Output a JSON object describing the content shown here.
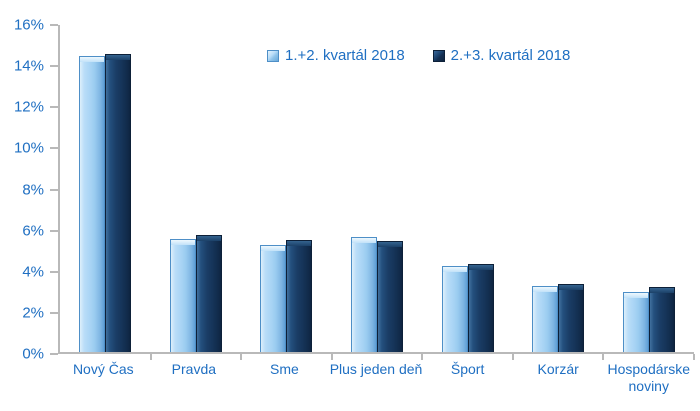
{
  "chart_data": {
    "type": "bar",
    "title": "",
    "xlabel": "",
    "ylabel": "",
    "ylim": [
      0,
      16
    ],
    "yticks": [
      "0%",
      "2%",
      "4%",
      "6%",
      "8%",
      "10%",
      "12%",
      "14%",
      "16%"
    ],
    "ytick_values": [
      0,
      2,
      4,
      6,
      8,
      10,
      12,
      14,
      16
    ],
    "grid": false,
    "legend_position": "top-center",
    "categories": [
      "Nový Čas",
      "Pravda",
      "Sme",
      "Plus jeden deň",
      "Šport",
      "Korzár",
      "Hospodárske noviny"
    ],
    "series": [
      {
        "name": "1.+2. kvartál 2018",
        "color_hex": "#a7d3f4",
        "values": [
          14.4,
          5.5,
          5.2,
          5.6,
          4.2,
          3.2,
          2.9
        ]
      },
      {
        "name": "2.+3. kvartál 2018",
        "color_hex": "#17375e",
        "values": [
          14.5,
          5.7,
          5.45,
          5.4,
          4.3,
          3.3,
          3.15
        ]
      }
    ],
    "colors": {
      "axis_text": "#1f6fc2",
      "axis_line": "#b9b9b9",
      "series1_light_blue": "#a7d3f4",
      "series2_dark_navy": "#17375e"
    }
  }
}
